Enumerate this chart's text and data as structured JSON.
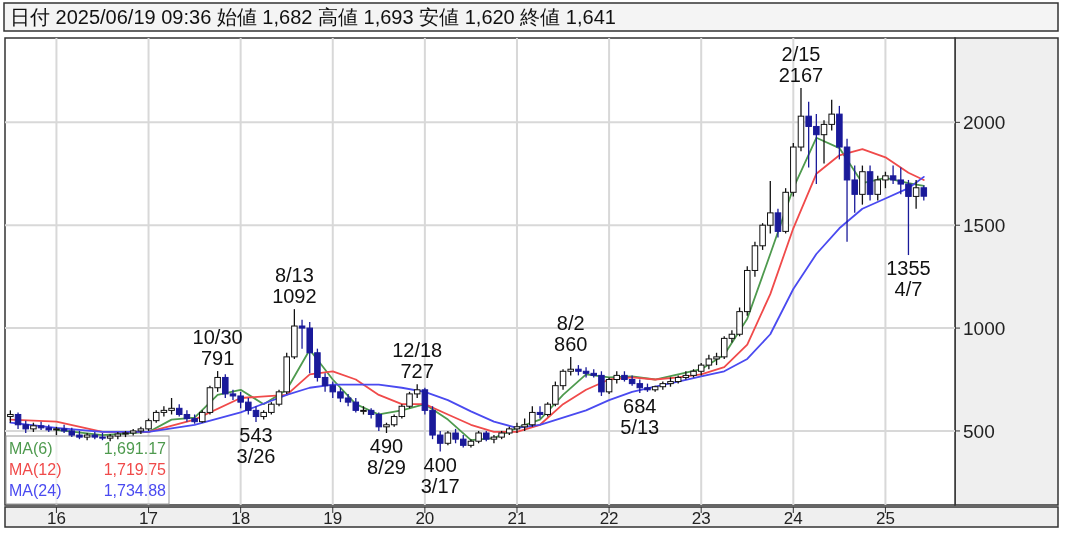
{
  "chart_data": {
    "type": "candlestick",
    "title": "日付 2025/06/19 09:36 始値 1,682 高値 1,693 安値 1,620 終値 1,641",
    "x": [
      "2015-07",
      "2015-08",
      "2015-09",
      "2015-10",
      "2015-11",
      "2015-12",
      "2016-01",
      "2016-02",
      "2016-03",
      "2016-04",
      "2016-05",
      "2016-06",
      "2016-07",
      "2016-08",
      "2016-09",
      "2016-10",
      "2016-11",
      "2016-12",
      "2017-01",
      "2017-02",
      "2017-03",
      "2017-04",
      "2017-05",
      "2017-06",
      "2017-07",
      "2017-08",
      "2017-09",
      "2017-10",
      "2017-11",
      "2017-12",
      "2018-01",
      "2018-02",
      "2018-03",
      "2018-04",
      "2018-05",
      "2018-06",
      "2018-07",
      "2018-08",
      "2018-09",
      "2018-10",
      "2018-11",
      "2018-12",
      "2019-01",
      "2019-02",
      "2019-03",
      "2019-04",
      "2019-05",
      "2019-06",
      "2019-07",
      "2019-08",
      "2019-09",
      "2019-10",
      "2019-11",
      "2019-12",
      "2020-01",
      "2020-02",
      "2020-03",
      "2020-04",
      "2020-05",
      "2020-06",
      "2020-07",
      "2020-08",
      "2020-09",
      "2020-10",
      "2020-11",
      "2020-12",
      "2021-01",
      "2021-02",
      "2021-03",
      "2021-04",
      "2021-05",
      "2021-06",
      "2021-07",
      "2021-08",
      "2021-09",
      "2021-10",
      "2021-11",
      "2021-12",
      "2022-01",
      "2022-02",
      "2022-03",
      "2022-04",
      "2022-05",
      "2022-06",
      "2022-07",
      "2022-08",
      "2022-09",
      "2022-10",
      "2022-11",
      "2022-12",
      "2023-01",
      "2023-02",
      "2023-03",
      "2023-04",
      "2023-05",
      "2023-06",
      "2023-07",
      "2023-08",
      "2023-09",
      "2023-10",
      "2023-11",
      "2023-12",
      "2024-01",
      "2024-02",
      "2024-03",
      "2024-04",
      "2024-05",
      "2024-06",
      "2024-07",
      "2024-08",
      "2024-09",
      "2024-10",
      "2024-11",
      "2024-12",
      "2025-01",
      "2025-02",
      "2025-03",
      "2025-04",
      "2025-05",
      "2025-06"
    ],
    "ohlc": [
      [
        570,
        600,
        540,
        580
      ],
      [
        580,
        590,
        510,
        530
      ],
      [
        530,
        550,
        490,
        510
      ],
      [
        510,
        540,
        495,
        525
      ],
      [
        525,
        545,
        505,
        515
      ],
      [
        515,
        530,
        495,
        505
      ],
      [
        505,
        520,
        480,
        510
      ],
      [
        510,
        530,
        490,
        500
      ],
      [
        500,
        515,
        470,
        480
      ],
      [
        480,
        500,
        460,
        470
      ],
      [
        470,
        490,
        455,
        480
      ],
      [
        480,
        495,
        460,
        470
      ],
      [
        470,
        490,
        455,
        465
      ],
      [
        465,
        485,
        450,
        475
      ],
      [
        475,
        495,
        460,
        485
      ],
      [
        485,
        500,
        470,
        490
      ],
      [
        490,
        510,
        478,
        500
      ],
      [
        500,
        520,
        485,
        510
      ],
      [
        510,
        560,
        500,
        550
      ],
      [
        550,
        600,
        540,
        590
      ],
      [
        590,
        620,
        570,
        600
      ],
      [
        600,
        660,
        580,
        610
      ],
      [
        610,
        630,
        570,
        580
      ],
      [
        580,
        600,
        545,
        560
      ],
      [
        560,
        580,
        535,
        545
      ],
      [
        545,
        600,
        540,
        590
      ],
      [
        590,
        720,
        580,
        710
      ],
      [
        710,
        791,
        690,
        760
      ],
      [
        760,
        775,
        660,
        680
      ],
      [
        680,
        700,
        650,
        670
      ],
      [
        670,
        690,
        610,
        640
      ],
      [
        640,
        660,
        580,
        600
      ],
      [
        600,
        620,
        543,
        570
      ],
      [
        570,
        600,
        555,
        590
      ],
      [
        590,
        640,
        580,
        630
      ],
      [
        630,
        700,
        620,
        690
      ],
      [
        690,
        880,
        680,
        860
      ],
      [
        860,
        1092,
        850,
        1010
      ],
      [
        1010,
        1040,
        900,
        1000
      ],
      [
        1000,
        1030,
        780,
        880
      ],
      [
        880,
        900,
        740,
        760
      ],
      [
        760,
        780,
        690,
        720
      ],
      [
        720,
        740,
        660,
        690
      ],
      [
        690,
        710,
        640,
        660
      ],
      [
        660,
        680,
        620,
        640
      ],
      [
        640,
        660,
        590,
        600
      ],
      [
        600,
        620,
        580,
        600
      ],
      [
        600,
        610,
        560,
        580
      ],
      [
        580,
        590,
        500,
        520
      ],
      [
        520,
        540,
        490,
        530
      ],
      [
        530,
        580,
        520,
        570
      ],
      [
        570,
        630,
        560,
        620
      ],
      [
        620,
        690,
        610,
        680
      ],
      [
        680,
        727,
        660,
        700
      ],
      [
        700,
        710,
        580,
        600
      ],
      [
        600,
        620,
        460,
        480
      ],
      [
        480,
        500,
        400,
        440
      ],
      [
        440,
        500,
        430,
        490
      ],
      [
        490,
        510,
        440,
        460
      ],
      [
        460,
        480,
        420,
        430
      ],
      [
        430,
        460,
        420,
        450
      ],
      [
        450,
        500,
        440,
        490
      ],
      [
        490,
        500,
        450,
        460
      ],
      [
        460,
        480,
        440,
        470
      ],
      [
        470,
        500,
        460,
        490
      ],
      [
        490,
        520,
        480,
        510
      ],
      [
        510,
        540,
        490,
        520
      ],
      [
        520,
        560,
        500,
        530
      ],
      [
        530,
        620,
        520,
        590
      ],
      [
        590,
        620,
        560,
        580
      ],
      [
        580,
        640,
        570,
        630
      ],
      [
        630,
        740,
        620,
        720
      ],
      [
        720,
        800,
        700,
        790
      ],
      [
        790,
        860,
        770,
        800
      ],
      [
        800,
        820,
        770,
        790
      ],
      [
        790,
        810,
        760,
        780
      ],
      [
        780,
        800,
        760,
        770
      ],
      [
        770,
        790,
        670,
        690
      ],
      [
        690,
        760,
        680,
        750
      ],
      [
        750,
        790,
        730,
        770
      ],
      [
        770,
        790,
        740,
        750
      ],
      [
        750,
        770,
        720,
        730
      ],
      [
        730,
        750,
        684,
        710
      ],
      [
        710,
        730,
        690,
        700
      ],
      [
        700,
        720,
        690,
        715
      ],
      [
        715,
        740,
        700,
        730
      ],
      [
        730,
        760,
        715,
        740
      ],
      [
        740,
        770,
        730,
        760
      ],
      [
        760,
        790,
        750,
        770
      ],
      [
        770,
        800,
        760,
        790
      ],
      [
        790,
        830,
        770,
        820
      ],
      [
        820,
        870,
        800,
        850
      ],
      [
        850,
        880,
        820,
        860
      ],
      [
        860,
        960,
        850,
        950
      ],
      [
        950,
        990,
        930,
        970
      ],
      [
        970,
        1100,
        960,
        1080
      ],
      [
        1080,
        1300,
        1060,
        1280
      ],
      [
        1280,
        1420,
        1250,
        1400
      ],
      [
        1400,
        1510,
        1380,
        1500
      ],
      [
        1500,
        1715,
        1460,
        1560
      ],
      [
        1560,
        1580,
        1440,
        1470
      ],
      [
        1470,
        1680,
        1460,
        1660
      ],
      [
        1660,
        1900,
        1640,
        1880
      ],
      [
        1880,
        2167,
        1860,
        2030
      ],
      [
        2030,
        2100,
        1780,
        1980
      ],
      [
        1980,
        2040,
        1700,
        1940
      ],
      [
        1940,
        2010,
        1800,
        1990
      ],
      [
        1990,
        2110,
        1960,
        2040
      ],
      [
        2040,
        2080,
        1820,
        1880
      ],
      [
        1880,
        1920,
        1420,
        1720
      ],
      [
        1720,
        1790,
        1560,
        1650
      ],
      [
        1650,
        1790,
        1600,
        1760
      ],
      [
        1760,
        1790,
        1620,
        1650
      ],
      [
        1650,
        1740,
        1620,
        1720
      ],
      [
        1720,
        1760,
        1680,
        1740
      ],
      [
        1740,
        1790,
        1700,
        1720
      ],
      [
        1720,
        1780,
        1650,
        1700
      ],
      [
        1700,
        1720,
        1355,
        1640
      ],
      [
        1640,
        1720,
        1580,
        1682
      ],
      [
        1682,
        1693,
        1620,
        1641
      ]
    ],
    "series": [
      {
        "type": "line",
        "name": "MA(6)",
        "color": "#4e9a4e",
        "x": [
          "2016-01",
          "2016-07",
          "2017-01",
          "2017-04",
          "2017-07",
          "2017-10",
          "2018-01",
          "2018-04",
          "2018-07",
          "2018-10",
          "2019-01",
          "2019-04",
          "2019-07",
          "2019-10",
          "2020-01",
          "2020-04",
          "2020-07",
          "2020-10",
          "2021-01",
          "2021-04",
          "2021-07",
          "2021-10",
          "2022-01",
          "2022-04",
          "2022-07",
          "2022-10",
          "2023-01",
          "2023-04",
          "2023-07",
          "2023-10",
          "2024-01",
          "2024-04",
          "2024-07",
          "2024-10",
          "2025-01",
          "2025-04",
          "2025-06"
        ],
        "values": [
          505,
          480,
          495,
          555,
          565,
          675,
          700,
          630,
          700,
          895,
          750,
          630,
          580,
          600,
          630,
          555,
          455,
          465,
          515,
          555,
          675,
          775,
          760,
          765,
          750,
          775,
          800,
          870,
          1045,
          1360,
          1680,
          1925,
          1875,
          1705,
          1730,
          1705,
          1691
        ]
      },
      {
        "type": "line",
        "name": "MA(12)",
        "color": "#f04a4a",
        "x": [
          "2015-07",
          "2016-01",
          "2016-07",
          "2017-01",
          "2017-07",
          "2018-01",
          "2018-07",
          "2018-10",
          "2019-01",
          "2019-04",
          "2019-07",
          "2019-10",
          "2020-01",
          "2020-04",
          "2020-07",
          "2020-10",
          "2021-01",
          "2021-04",
          "2021-07",
          "2021-10",
          "2022-01",
          "2022-04",
          "2022-07",
          "2022-10",
          "2023-01",
          "2023-04",
          "2023-07",
          "2023-10",
          "2024-01",
          "2024-04",
          "2024-07",
          "2024-10",
          "2025-01",
          "2025-04",
          "2025-06"
        ],
        "values": [
          555,
          545,
          495,
          495,
          555,
          660,
          675,
          775,
          790,
          750,
          675,
          630,
          630,
          580,
          530,
          495,
          495,
          530,
          630,
          700,
          750,
          760,
          750,
          760,
          775,
          810,
          920,
          1165,
          1485,
          1750,
          1840,
          1870,
          1830,
          1755,
          1720
        ]
      },
      {
        "type": "line",
        "name": "MA(24)",
        "color": "#4a4af0",
        "x": [
          "2015-07",
          "2016-01",
          "2016-07",
          "2017-01",
          "2017-07",
          "2018-01",
          "2018-07",
          "2018-10",
          "2019-01",
          "2019-07",
          "2019-10",
          "2020-01",
          "2020-04",
          "2020-07",
          "2020-10",
          "2021-01",
          "2021-04",
          "2021-07",
          "2021-10",
          "2022-01",
          "2022-04",
          "2022-07",
          "2022-10",
          "2023-01",
          "2023-04",
          "2023-07",
          "2023-10",
          "2024-01",
          "2024-04",
          "2024-07",
          "2024-10",
          "2025-01",
          "2025-04",
          "2025-06"
        ],
        "values": [
          540,
          515,
          495,
          495,
          530,
          590,
          675,
          710,
          725,
          725,
          710,
          690,
          650,
          595,
          545,
          515,
          530,
          565,
          600,
          650,
          690,
          715,
          740,
          765,
          790,
          850,
          970,
          1190,
          1360,
          1485,
          1580,
          1630,
          1680,
          1735
        ]
      }
    ],
    "annotations": [
      "1,691.17",
      "1,719.75",
      "1,734.88",
      {
        "text": "10/30\n791",
        "x": "2017-10",
        "y": 791
      },
      {
        "text": "543\n3/26",
        "x": "2018-03",
        "y": 543
      },
      {
        "text": "8/13\n1092",
        "x": "2018-08",
        "y": 1092
      },
      {
        "text": "490\n8/29",
        "x": "2019-08",
        "y": 490
      },
      {
        "text": "12/18\n727",
        "x": "2019-12",
        "y": 727
      },
      {
        "text": "400\n3/17",
        "x": "2020-03",
        "y": 400
      },
      {
        "text": "8/2\n860",
        "x": "2021-08",
        "y": 860
      },
      {
        "text": "684\n5/13",
        "x": "2022-05",
        "y": 684
      },
      {
        "text": "2/15\n2167",
        "x": "2024-02",
        "y": 2167
      },
      {
        "text": "1355\n4/7",
        "x": "2025-04",
        "y": 1355
      }
    ],
    "xlim": [
      "2015-06-10",
      "2025-10-03"
    ],
    "xticks": [
      {
        "value": "2016-01",
        "label": "16"
      },
      {
        "value": "2017-01",
        "label": "17"
      },
      {
        "value": "2018-01",
        "label": "18"
      },
      {
        "value": "2019-01",
        "label": "19"
      },
      {
        "value": "2020-01",
        "label": "20"
      },
      {
        "value": "2021-01",
        "label": "21"
      },
      {
        "value": "2022-01",
        "label": "22"
      },
      {
        "value": "2023-01",
        "label": "23"
      },
      {
        "value": "2024-01",
        "label": "24"
      },
      {
        "value": "2025-01",
        "label": "25"
      }
    ],
    "ylim": [
      140,
      2410
    ],
    "yticks": [
      500,
      1000,
      1500,
      2000
    ],
    "grid": true,
    "legend": "bottom left"
  }
}
